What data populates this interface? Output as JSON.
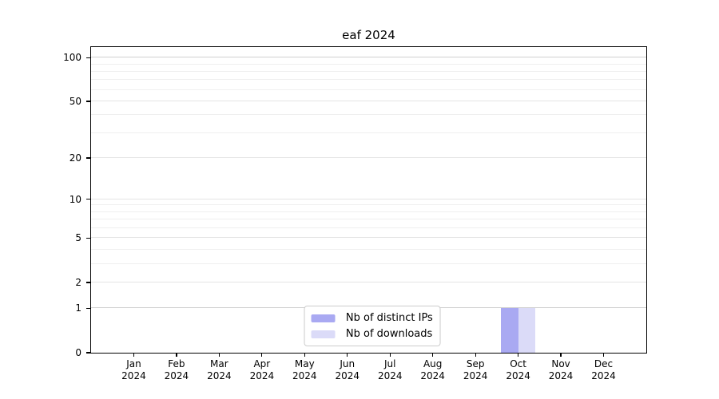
{
  "chart_data": {
    "type": "bar",
    "title": "eaf 2024",
    "categories": [
      "Jan",
      "Feb",
      "Mar",
      "Apr",
      "May",
      "Jun",
      "Jul",
      "Aug",
      "Sep",
      "Oct",
      "Nov",
      "Dec"
    ],
    "x_year_label": "2024",
    "series": [
      {
        "name": "Nb of distinct IPs",
        "color": "#a9a9f2",
        "values": [
          0,
          0,
          0,
          0,
          0,
          0,
          0,
          0,
          0,
          1,
          0,
          0
        ]
      },
      {
        "name": "Nb of downloads",
        "color": "#dbdbf8",
        "values": [
          0,
          0,
          0,
          0,
          0,
          0,
          0,
          0,
          0,
          1,
          0,
          0
        ]
      }
    ],
    "yticks": [
      0,
      1,
      2,
      5,
      10,
      20,
      50,
      100
    ],
    "minor_gridlines": [
      3,
      4,
      6,
      7,
      8,
      9,
      30,
      40,
      60,
      70,
      80,
      90
    ],
    "ylim": [
      0,
      118
    ],
    "scale": "log1p",
    "grid": true,
    "legend_position": "lower center",
    "colors": {
      "grid_minor": "#efefef",
      "grid_major": "#e4e4e4",
      "grid_emphasis": "#d0d0d0",
      "axis": "#000000",
      "background": "#ffffff"
    }
  }
}
